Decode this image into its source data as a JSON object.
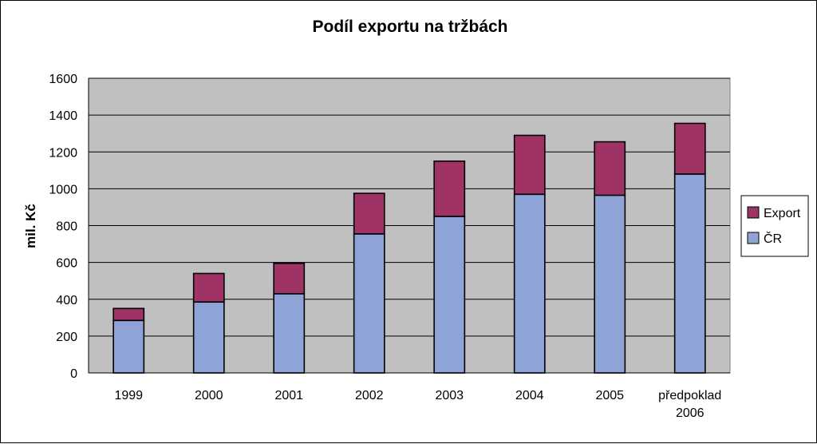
{
  "chart_data": {
    "type": "bar",
    "stacked": true,
    "title": "Podíl exportu na tržbách",
    "xlabel": "",
    "ylabel": "mil. Kč",
    "ylim": [
      0,
      1600
    ],
    "yticks": [
      0,
      200,
      400,
      600,
      800,
      1000,
      1200,
      1400,
      1600
    ],
    "grid": true,
    "legend_position": "right",
    "categories": [
      [
        "1999"
      ],
      [
        "2000"
      ],
      [
        "2001"
      ],
      [
        "2002"
      ],
      [
        "2003"
      ],
      [
        "2004"
      ],
      [
        "2005"
      ],
      [
        "předpoklad",
        "2006"
      ]
    ],
    "series": [
      {
        "name": "ČR",
        "color": "#8ea3d6",
        "values": [
          285,
          385,
          430,
          755,
          850,
          970,
          965,
          1080
        ]
      },
      {
        "name": "Export",
        "color": "#a03366",
        "values": [
          65,
          155,
          165,
          220,
          300,
          320,
          290,
          275
        ]
      }
    ],
    "plot_background": "#c0c0c0"
  }
}
